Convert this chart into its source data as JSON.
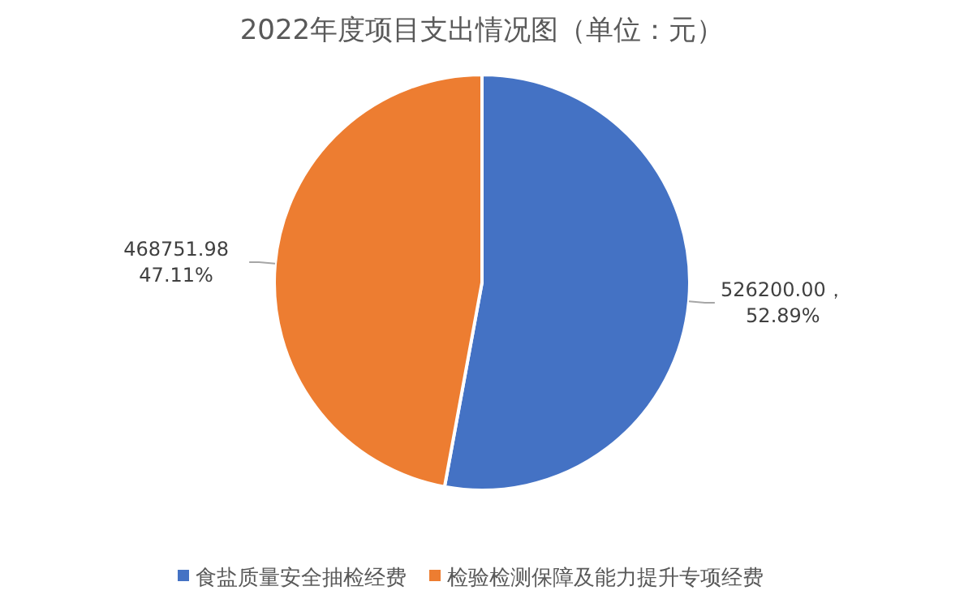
{
  "chart_data": {
    "type": "pie",
    "title": "2022年度项目支出情况图（单位：元）",
    "categories": [
      "食盐质量安全抽检经费",
      "检验检测保障及能力提升专项经费"
    ],
    "values": [
      526200.0,
      468751.98
    ],
    "colors": [
      "#4472c4",
      "#ed7d31"
    ],
    "value_labels": [
      "526200.00，\n52.89%",
      "468751.98\n47.11%"
    ],
    "legend": "bottom"
  }
}
